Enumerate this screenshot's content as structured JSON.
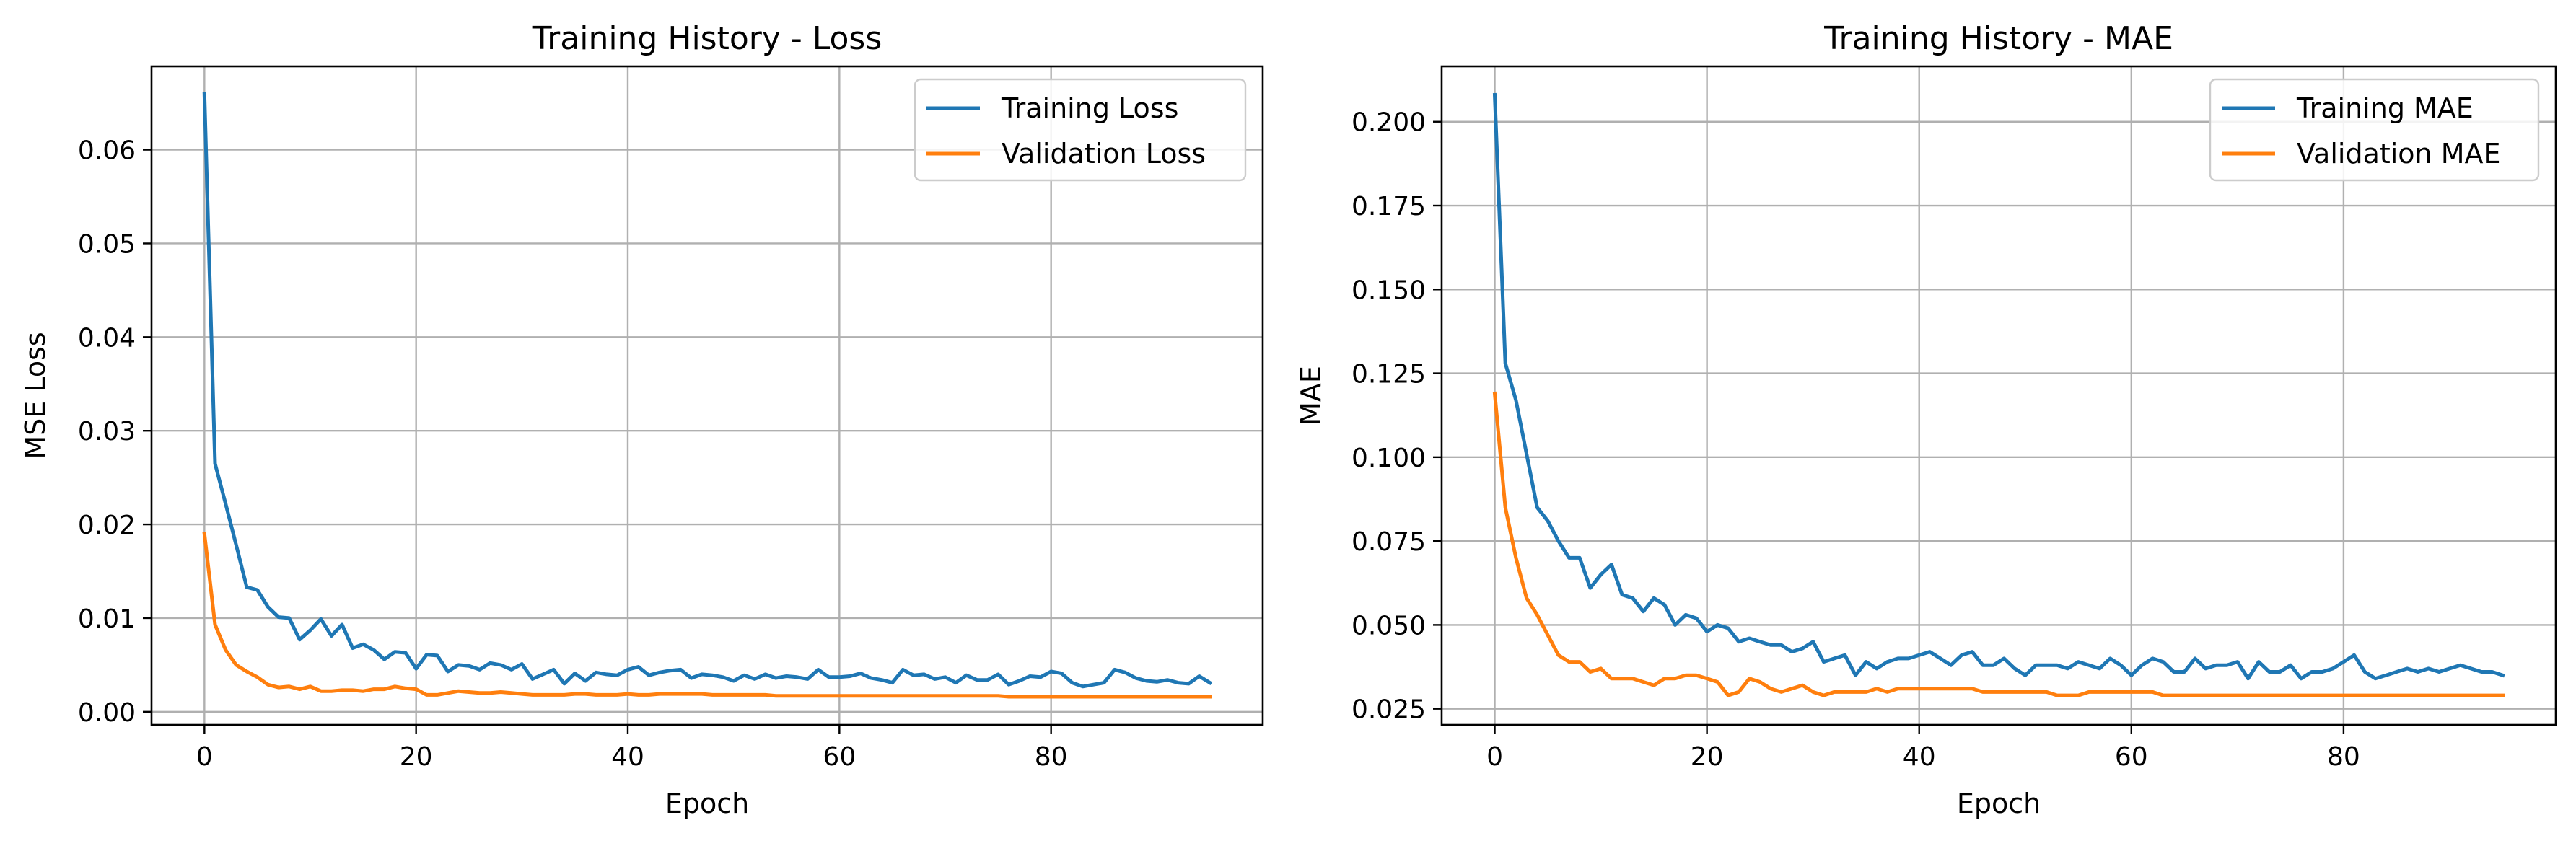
{
  "colors": {
    "training": "#1f77b4",
    "validation": "#ff7f0e",
    "grid": "#b0b0b0",
    "axes": "#000000"
  },
  "chart_data": [
    {
      "type": "line",
      "title": "Training History - Loss",
      "xlabel": "Epoch",
      "ylabel": "MSE Loss",
      "xlim": [
        -5,
        100
      ],
      "ylim": [
        -0.0014,
        0.0689
      ],
      "xticks": [
        0,
        20,
        40,
        60,
        80
      ],
      "xtick_labels": [
        "0",
        "20",
        "40",
        "60",
        "80"
      ],
      "yticks": [
        0,
        0.01,
        0.02,
        0.03,
        0.04,
        0.05,
        0.06
      ],
      "ytick_labels": [
        "0.00",
        "0.01",
        "0.02",
        "0.03",
        "0.04",
        "0.05",
        "0.06"
      ],
      "grid": true,
      "legend_position": "top-right",
      "x": [
        0,
        1,
        2,
        3,
        4,
        5,
        6,
        7,
        8,
        9,
        10,
        11,
        12,
        13,
        14,
        15,
        16,
        17,
        18,
        19,
        20,
        21,
        22,
        23,
        24,
        25,
        26,
        27,
        28,
        29,
        30,
        31,
        32,
        33,
        34,
        35,
        36,
        37,
        38,
        39,
        40,
        41,
        42,
        43,
        44,
        45,
        46,
        47,
        48,
        49,
        50,
        51,
        52,
        53,
        54,
        55,
        56,
        57,
        58,
        59,
        60,
        61,
        62,
        63,
        64,
        65,
        66,
        67,
        68,
        69,
        70,
        71,
        72,
        73,
        74,
        75,
        76,
        77,
        78,
        79,
        80,
        81,
        82,
        83,
        84,
        85,
        86,
        87,
        88,
        89,
        90,
        91,
        92,
        93,
        94,
        95
      ],
      "series": [
        {
          "name": "Training Loss",
          "color": "#1f77b4",
          "values": [
            0.066,
            0.0265,
            0.0222,
            0.0178,
            0.0133,
            0.013,
            0.0112,
            0.0101,
            0.01,
            0.0077,
            0.0087,
            0.0099,
            0.0081,
            0.0093,
            0.0068,
            0.0072,
            0.0066,
            0.0056,
            0.0064,
            0.0063,
            0.0046,
            0.0061,
            0.006,
            0.0043,
            0.005,
            0.0049,
            0.0045,
            0.0052,
            0.005,
            0.0045,
            0.0051,
            0.0035,
            0.004,
            0.0045,
            0.003,
            0.0041,
            0.0033,
            0.0042,
            0.004,
            0.0039,
            0.0045,
            0.0048,
            0.0039,
            0.0042,
            0.0044,
            0.0045,
            0.0036,
            0.004,
            0.0039,
            0.0037,
            0.0033,
            0.0039,
            0.0035,
            0.004,
            0.0036,
            0.0038,
            0.0037,
            0.0035,
            0.0045,
            0.0037,
            0.0037,
            0.0038,
            0.0041,
            0.0036,
            0.0034,
            0.0031,
            0.0045,
            0.0039,
            0.004,
            0.0035,
            0.0037,
            0.0031,
            0.0039,
            0.0034,
            0.0034,
            0.004,
            0.0029,
            0.0033,
            0.0038,
            0.0037,
            0.0043,
            0.0041,
            0.0031,
            0.0027,
            0.0029,
            0.0031,
            0.0045,
            0.0042,
            0.0036,
            0.0033,
            0.0032,
            0.0034,
            0.0031,
            0.003,
            0.0038,
            0.0031
          ]
        },
        {
          "name": "Validation Loss",
          "color": "#ff7f0e",
          "values": [
            0.019,
            0.0093,
            0.0066,
            0.005,
            0.0043,
            0.0037,
            0.0029,
            0.0026,
            0.0027,
            0.0024,
            0.0027,
            0.0022,
            0.0022,
            0.0023,
            0.0023,
            0.0022,
            0.0024,
            0.0024,
            0.0027,
            0.0025,
            0.0024,
            0.0018,
            0.0018,
            0.002,
            0.0022,
            0.0021,
            0.002,
            0.002,
            0.0021,
            0.002,
            0.0019,
            0.0018,
            0.0018,
            0.0018,
            0.0018,
            0.0019,
            0.0019,
            0.0018,
            0.0018,
            0.0018,
            0.0019,
            0.0018,
            0.0018,
            0.0019,
            0.0019,
            0.0019,
            0.0019,
            0.0019,
            0.0018,
            0.0018,
            0.0018,
            0.0018,
            0.0018,
            0.0018,
            0.0017,
            0.0017,
            0.0017,
            0.0017,
            0.0017,
            0.0017,
            0.0017,
            0.0017,
            0.0017,
            0.0017,
            0.0017,
            0.0017,
            0.0017,
            0.0017,
            0.0017,
            0.0017,
            0.0017,
            0.0017,
            0.0017,
            0.0017,
            0.0017,
            0.0017,
            0.0016,
            0.0016,
            0.0016,
            0.0016,
            0.0016,
            0.0016,
            0.0016,
            0.0016,
            0.0016,
            0.0016,
            0.0016,
            0.0016,
            0.0016,
            0.0016,
            0.0016,
            0.0016,
            0.0016,
            0.0016,
            0.0016,
            0.0016
          ]
        }
      ]
    },
    {
      "type": "line",
      "title": "Training History - MAE",
      "xlabel": "Epoch",
      "ylabel": "MAE",
      "xlim": [
        -5,
        100
      ],
      "ylim": [
        0.0202,
        0.2165
      ],
      "xticks": [
        0,
        20,
        40,
        60,
        80
      ],
      "xtick_labels": [
        "0",
        "20",
        "40",
        "60",
        "80"
      ],
      "yticks": [
        0.025,
        0.05,
        0.075,
        0.1,
        0.125,
        0.15,
        0.175,
        0.2
      ],
      "ytick_labels": [
        "0.025",
        "0.050",
        "0.075",
        "0.100",
        "0.125",
        "0.150",
        "0.175",
        "0.200"
      ],
      "grid": true,
      "legend_position": "top-right",
      "x": [
        0,
        1,
        2,
        3,
        4,
        5,
        6,
        7,
        8,
        9,
        10,
        11,
        12,
        13,
        14,
        15,
        16,
        17,
        18,
        19,
        20,
        21,
        22,
        23,
        24,
        25,
        26,
        27,
        28,
        29,
        30,
        31,
        32,
        33,
        34,
        35,
        36,
        37,
        38,
        39,
        40,
        41,
        42,
        43,
        44,
        45,
        46,
        47,
        48,
        49,
        50,
        51,
        52,
        53,
        54,
        55,
        56,
        57,
        58,
        59,
        60,
        61,
        62,
        63,
        64,
        65,
        66,
        67,
        68,
        69,
        70,
        71,
        72,
        73,
        74,
        75,
        76,
        77,
        78,
        79,
        80,
        81,
        82,
        83,
        84,
        85,
        86,
        87,
        88,
        89,
        90,
        91,
        92,
        93,
        94,
        95
      ],
      "series": [
        {
          "name": "Training MAE",
          "color": "#1f77b4",
          "values": [
            0.208,
            0.128,
            0.117,
            0.101,
            0.085,
            0.081,
            0.075,
            0.07,
            0.07,
            0.061,
            0.065,
            0.068,
            0.059,
            0.058,
            0.054,
            0.058,
            0.056,
            0.05,
            0.053,
            0.052,
            0.048,
            0.05,
            0.049,
            0.045,
            0.046,
            0.045,
            0.044,
            0.044,
            0.042,
            0.043,
            0.045,
            0.039,
            0.04,
            0.041,
            0.035,
            0.039,
            0.037,
            0.039,
            0.04,
            0.04,
            0.041,
            0.042,
            0.04,
            0.038,
            0.041,
            0.042,
            0.038,
            0.038,
            0.04,
            0.037,
            0.035,
            0.038,
            0.038,
            0.038,
            0.037,
            0.039,
            0.038,
            0.037,
            0.04,
            0.038,
            0.035,
            0.038,
            0.04,
            0.039,
            0.036,
            0.036,
            0.04,
            0.037,
            0.038,
            0.038,
            0.039,
            0.034,
            0.039,
            0.036,
            0.036,
            0.038,
            0.034,
            0.036,
            0.036,
            0.037,
            0.039,
            0.041,
            0.036,
            0.034,
            0.035,
            0.036,
            0.037,
            0.036,
            0.037,
            0.036,
            0.037,
            0.038,
            0.037,
            0.036,
            0.036,
            0.035
          ]
        },
        {
          "name": "Validation MAE",
          "color": "#ff7f0e",
          "values": [
            0.119,
            0.085,
            0.07,
            0.058,
            0.053,
            0.047,
            0.041,
            0.039,
            0.039,
            0.036,
            0.037,
            0.034,
            0.034,
            0.034,
            0.033,
            0.032,
            0.034,
            0.034,
            0.035,
            0.035,
            0.034,
            0.033,
            0.029,
            0.03,
            0.034,
            0.033,
            0.031,
            0.03,
            0.031,
            0.032,
            0.03,
            0.029,
            0.03,
            0.03,
            0.03,
            0.03,
            0.031,
            0.03,
            0.031,
            0.031,
            0.031,
            0.031,
            0.031,
            0.031,
            0.031,
            0.031,
            0.03,
            0.03,
            0.03,
            0.03,
            0.03,
            0.03,
            0.03,
            0.029,
            0.029,
            0.029,
            0.03,
            0.03,
            0.03,
            0.03,
            0.03,
            0.03,
            0.03,
            0.029,
            0.029,
            0.029,
            0.029,
            0.029,
            0.029,
            0.029,
            0.029,
            0.029,
            0.029,
            0.029,
            0.029,
            0.029,
            0.029,
            0.029,
            0.029,
            0.029,
            0.029,
            0.029,
            0.029,
            0.029,
            0.029,
            0.029,
            0.029,
            0.029,
            0.029,
            0.029,
            0.029,
            0.029,
            0.029,
            0.029,
            0.029,
            0.029
          ]
        }
      ]
    }
  ]
}
